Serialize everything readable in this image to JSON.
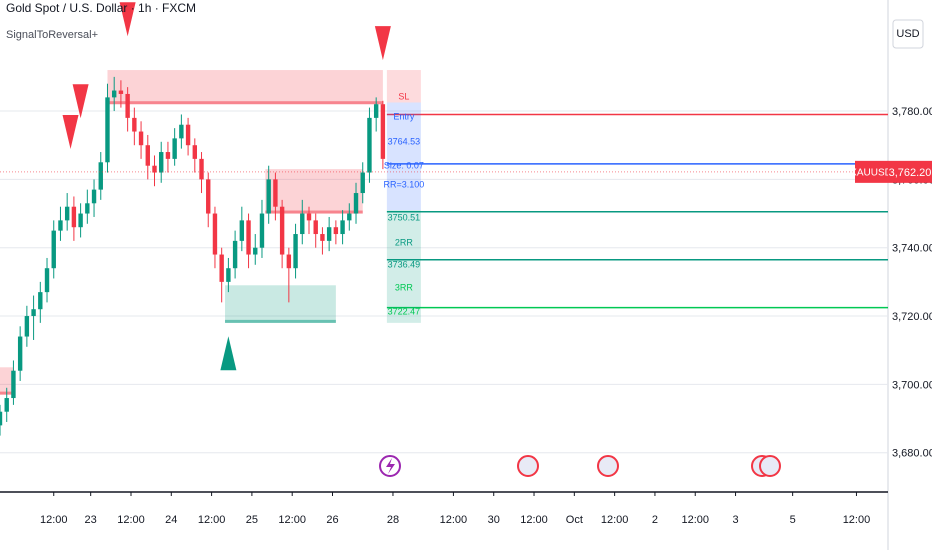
{
  "chart_data": {
    "type": "candlestick",
    "title": "Gold Spot / U.S. Dollar · 1h · FXCM",
    "indicator": "SignalToReversal+",
    "currency": "USD",
    "symbol": "XAUUSD",
    "last_price": 3762.2,
    "last_price_label": "3,762.20",
    "xlim": [
      0,
      265
    ],
    "ylim": [
      3668.5,
      3812.5
    ],
    "yticks": [
      {
        "value": 3680,
        "label": "3,680.00"
      },
      {
        "value": 3700,
        "label": "3,700.00"
      },
      {
        "value": 3720,
        "label": "3,720.00"
      },
      {
        "value": 3740,
        "label": "3,740.00"
      },
      {
        "value": 3760,
        "label": "3,760.00"
      },
      {
        "value": 3780,
        "label": "3,780.00"
      }
    ],
    "xticks": [
      {
        "value": 16,
        "label": "12:00"
      },
      {
        "value": 27,
        "label": "23"
      },
      {
        "value": 39,
        "label": "12:00"
      },
      {
        "value": 51,
        "label": "24"
      },
      {
        "value": 63,
        "label": "12:00"
      },
      {
        "value": 75,
        "label": "25"
      },
      {
        "value": 87,
        "label": "12:00"
      },
      {
        "value": 99,
        "label": "26"
      },
      {
        "value": 117,
        "label": "28"
      },
      {
        "value": 135,
        "label": "12:00"
      },
      {
        "value": 147,
        "label": "30"
      },
      {
        "value": 159,
        "label": "12:00"
      },
      {
        "value": 171,
        "label": "Oct"
      },
      {
        "value": 183,
        "label": "12:00"
      },
      {
        "value": 195,
        "label": "2"
      },
      {
        "value": 207,
        "label": "12:00"
      },
      {
        "value": 219,
        "label": "3"
      },
      {
        "value": 236,
        "label": "5"
      },
      {
        "value": 255,
        "label": "12:00"
      }
    ],
    "x": [
      0,
      2,
      4,
      6,
      8,
      10,
      12,
      14,
      16,
      18,
      20,
      22,
      24,
      26,
      28,
      30,
      32,
      34,
      36,
      38,
      40,
      42,
      44,
      46,
      48,
      50,
      52,
      54,
      56,
      58,
      60,
      62,
      64,
      66,
      68,
      70,
      72,
      74,
      76,
      78,
      80,
      82,
      84,
      86,
      88,
      90,
      92,
      94,
      96,
      98,
      100,
      102,
      104,
      106,
      108,
      110,
      112,
      114
    ],
    "candles": [
      [
        3688,
        3694,
        3685,
        3692
      ],
      [
        3692,
        3699,
        3689,
        3696
      ],
      [
        3696,
        3707,
        3694,
        3704
      ],
      [
        3704,
        3717,
        3701,
        3714
      ],
      [
        3714,
        3723,
        3711,
        3720
      ],
      [
        3720,
        3726,
        3713,
        3722
      ],
      [
        3722,
        3730,
        3718,
        3727
      ],
      [
        3727,
        3737,
        3724,
        3734
      ],
      [
        3734,
        3748,
        3731,
        3745
      ],
      [
        3745,
        3752,
        3742,
        3748
      ],
      [
        3748,
        3756,
        3745,
        3752
      ],
      [
        3752,
        3755,
        3742,
        3746
      ],
      [
        3746,
        3753,
        3743,
        3750
      ],
      [
        3750,
        3757,
        3747,
        3753
      ],
      [
        3753,
        3760,
        3749,
        3757
      ],
      [
        3757,
        3768,
        3754,
        3765
      ],
      [
        3765,
        3788,
        3762,
        3784
      ],
      [
        3784,
        3790,
        3780,
        3786
      ],
      [
        3786,
        3789,
        3781,
        3785
      ],
      [
        3785,
        3787,
        3774,
        3778
      ],
      [
        3778,
        3781,
        3770,
        3774
      ],
      [
        3774,
        3777,
        3766,
        3770
      ],
      [
        3770,
        3773,
        3760,
        3764
      ],
      [
        3764,
        3767,
        3758,
        3762
      ],
      [
        3762,
        3771,
        3759,
        3768
      ],
      [
        3768,
        3771,
        3762,
        3766
      ],
      [
        3766,
        3775,
        3764,
        3772
      ],
      [
        3772,
        3779,
        3769,
        3776
      ],
      [
        3776,
        3778,
        3767,
        3770
      ],
      [
        3770,
        3772,
        3762,
        3766
      ],
      [
        3766,
        3768,
        3756,
        3760
      ],
      [
        3760,
        3762,
        3746,
        3750
      ],
      [
        3750,
        3752,
        3734,
        3738
      ],
      [
        3738,
        3740,
        3724,
        3730
      ],
      [
        3730,
        3737,
        3727,
        3734
      ],
      [
        3734,
        3745,
        3731,
        3742
      ],
      [
        3742,
        3752,
        3739,
        3748
      ],
      [
        3748,
        3750,
        3734,
        3738
      ],
      [
        3738,
        3744,
        3735,
        3740
      ],
      [
        3740,
        3754,
        3737,
        3750
      ],
      [
        3750,
        3764,
        3747,
        3760
      ],
      [
        3760,
        3762,
        3748,
        3752
      ],
      [
        3752,
        3754,
        3734,
        3738
      ],
      [
        3738,
        3740,
        3724,
        3734
      ],
      [
        3734,
        3747,
        3731,
        3744
      ],
      [
        3744,
        3754,
        3741,
        3750
      ],
      [
        3750,
        3752,
        3744,
        3748
      ],
      [
        3748,
        3750,
        3740,
        3744
      ],
      [
        3744,
        3746,
        3738,
        3742
      ],
      [
        3742,
        3749,
        3739,
        3746
      ],
      [
        3746,
        3748,
        3741,
        3744
      ],
      [
        3744,
        3751,
        3741,
        3748
      ],
      [
        3748,
        3753,
        3745,
        3750
      ],
      [
        3750,
        3759,
        3747,
        3756
      ],
      [
        3756,
        3765,
        3753,
        3762
      ],
      [
        3762,
        3781,
        3759,
        3778
      ],
      [
        3778,
        3784,
        3774,
        3782
      ],
      [
        3782,
        3783,
        3763,
        3766
      ]
    ],
    "zones": [
      {
        "x": [
          32,
          114
        ],
        "y": [
          3782,
          3792
        ],
        "color": "#f23645"
      },
      {
        "x": [
          79,
          108
        ],
        "y": [
          3750,
          3763
        ],
        "color": "#f23645"
      },
      {
        "x": [
          67,
          100
        ],
        "y": [
          3718,
          3729
        ],
        "color": "#089981"
      },
      {
        "x": [
          0,
          4
        ],
        "y": [
          3697,
          3705
        ],
        "color": "#f23645"
      }
    ],
    "signals": [
      {
        "x": 38,
        "y": 3806,
        "dir": "down"
      },
      {
        "x": 114,
        "y": 3799,
        "dir": "down"
      },
      {
        "x": 21,
        "y": 3773,
        "dir": "down"
      },
      {
        "x": 24,
        "y": 3782,
        "dir": "down"
      },
      {
        "x": 68,
        "y": 3710,
        "dir": "up"
      }
    ],
    "levels": [
      {
        "value": 3779,
        "color": "#f23645"
      },
      {
        "value": 3764.53,
        "color": "#2962ff"
      },
      {
        "value": 3750.51,
        "color": "#089981"
      },
      {
        "value": 3736.49,
        "color": "#089981"
      },
      {
        "value": 3722.47,
        "color": "#00c853"
      }
    ],
    "panel": [
      {
        "text": "SL",
        "color": "#f23645"
      },
      {
        "text": "Entry",
        "color": "#2962ff"
      },
      {
        "text": "3764.53",
        "color": "#2962ff"
      },
      {
        "text": "Size: 0.07",
        "color": "#2962ff"
      },
      {
        "text": "RR=3.100",
        "color": "#2962ff"
      },
      {
        "text": "3750.51",
        "color": "#089981"
      },
      {
        "text": "2RR",
        "color": "#089981"
      },
      {
        "text": "3736.49",
        "color": "#089981"
      },
      {
        "text": "3RR",
        "color": "#00c853"
      },
      {
        "text": "3722.47",
        "color": "#00c853"
      }
    ]
  }
}
